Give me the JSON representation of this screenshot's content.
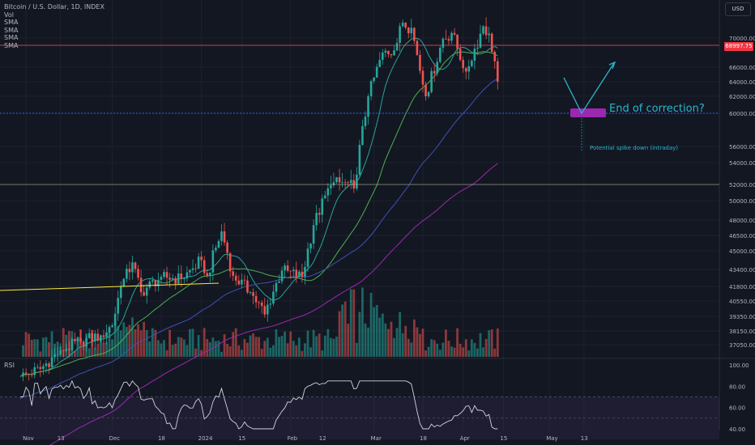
{
  "legend": {
    "symbol": "Bitcoin / U.S. Dollar, 1D, INDEX",
    "vol": "Vol",
    "sma_labels": [
      "SMA",
      "SMA",
      "SMA",
      "SMA"
    ]
  },
  "currency_button": "USD",
  "current_price_tag": "68997.75",
  "rsi_label": "RSI",
  "annotations": {
    "main": "End of correction?",
    "sub": "Potential spike down (intraday)"
  },
  "colors": {
    "background": "#131722",
    "up": "#26a69a",
    "down": "#ef5350",
    "sma1": "#26a69a",
    "sma2": "#4caf50",
    "sma3": "#3f51b5",
    "sma4": "#9c27b0",
    "annotation": "#2ab6cc",
    "support_box": "#9c27b0",
    "resistance_line": "#f7525f",
    "trend_line": "#ffeb3b"
  },
  "chart_data": {
    "type": "candlestick",
    "title": "Bitcoin / U.S. Dollar, 1D, INDEX",
    "y_axis_ticks": [
      "70000.00",
      "66000.00",
      "64000.00",
      "62000.00",
      "60000.00",
      "56000.00",
      "54000.00",
      "52000.00",
      "50000.00",
      "48000.00",
      "46500.00",
      "45000.00",
      "43400.00",
      "41800.00",
      "40550.00",
      "39350.00",
      "38150.00",
      "37050.00"
    ],
    "x_axis_ticks": [
      "Nov",
      "13",
      "Dec",
      "18",
      "2024",
      "15",
      "Feb",
      "12",
      "Mar",
      "18",
      "Apr",
      "15",
      "May",
      "13"
    ],
    "rsi_ticks": [
      "100.00",
      "80.00",
      "60.00",
      "40.00"
    ],
    "price_range": [
      37050,
      70000
    ],
    "current_price": 68997.75,
    "support_level": 60000,
    "horizontal_line": 52000,
    "rsi_bands": [
      70,
      30
    ],
    "close_anchors": [
      {
        "date": "2023-10-30",
        "close": 34500
      },
      {
        "date": "2023-11-06",
        "close": 35100
      },
      {
        "date": "2023-11-13",
        "close": 36600
      },
      {
        "date": "2023-11-20",
        "close": 37300
      },
      {
        "date": "2023-11-27",
        "close": 37800
      },
      {
        "date": "2023-12-01",
        "close": 38600
      },
      {
        "date": "2023-12-04",
        "close": 41800
      },
      {
        "date": "2023-12-08",
        "close": 44000
      },
      {
        "date": "2023-12-11",
        "close": 41300
      },
      {
        "date": "2023-12-18",
        "close": 42700
      },
      {
        "date": "2023-12-25",
        "close": 42500
      },
      {
        "date": "2024-01-01",
        "close": 44200
      },
      {
        "date": "2024-01-03",
        "close": 42800
      },
      {
        "date": "2024-01-08",
        "close": 46900
      },
      {
        "date": "2024-01-12",
        "close": 42800
      },
      {
        "date": "2024-01-18",
        "close": 41300
      },
      {
        "date": "2024-01-23",
        "close": 39500
      },
      {
        "date": "2024-01-29",
        "close": 43300
      },
      {
        "date": "2024-02-05",
        "close": 42700
      },
      {
        "date": "2024-02-09",
        "close": 47500
      },
      {
        "date": "2024-02-15",
        "close": 51900
      },
      {
        "date": "2024-02-20",
        "close": 52200
      },
      {
        "date": "2024-02-23",
        "close": 51500
      },
      {
        "date": "2024-02-28",
        "close": 62000
      },
      {
        "date": "2024-03-04",
        "close": 68000
      },
      {
        "date": "2024-03-08",
        "close": 68300
      },
      {
        "date": "2024-03-11",
        "close": 72100
      },
      {
        "date": "2024-03-14",
        "close": 71400
      },
      {
        "date": "2024-03-19",
        "close": 62000
      },
      {
        "date": "2024-03-25",
        "close": 69900
      },
      {
        "date": "2024-03-28",
        "close": 70700
      },
      {
        "date": "2024-04-02",
        "close": 65400
      },
      {
        "date": "2024-04-08",
        "close": 71600
      },
      {
        "date": "2024-04-10",
        "close": 70600
      },
      {
        "date": "2024-04-12",
        "close": 66800
      },
      {
        "date": "2024-04-13",
        "close": 64000
      }
    ]
  }
}
